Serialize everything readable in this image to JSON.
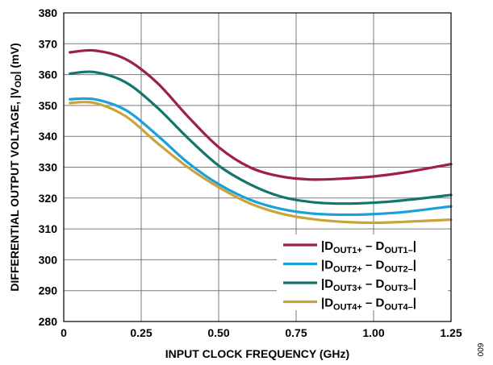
{
  "chart_data": {
    "type": "line",
    "title": "",
    "xlabel": "INPUT CLOCK FREQUENCY (GHz)",
    "ylabel_parts": {
      "before": "DIFFERENTIAL OUTPUT VOLTAGE, |V",
      "sub": "OD",
      "after": "| (mV)"
    },
    "xlim": [
      0,
      1.25
    ],
    "ylim": [
      280,
      380
    ],
    "x_ticks": [
      0,
      0.25,
      0.5,
      0.75,
      1.0,
      1.25
    ],
    "x_tick_labels": [
      "0",
      "0.25",
      "0.50",
      "0.75",
      "1.00",
      "1.25"
    ],
    "y_ticks": [
      280,
      290,
      300,
      310,
      320,
      330,
      340,
      350,
      360,
      370,
      380
    ],
    "y_tick_labels": [
      "280",
      "290",
      "300",
      "310",
      "320",
      "330",
      "340",
      "350",
      "360",
      "370",
      "380"
    ],
    "grid": true,
    "legend_position": "bottom-right",
    "x": [
      0.02,
      0.1,
      0.2,
      0.3,
      0.4,
      0.5,
      0.6,
      0.7,
      0.8,
      0.9,
      1.0,
      1.1,
      1.25
    ],
    "series": [
      {
        "legend": {
          "open": "|D",
          "sub1": "OUT1+",
          "mid": " – D",
          "sub2": "OUT1–",
          "close": "|"
        },
        "color": "#9e1f4f",
        "values": [
          367.2,
          367.8,
          365.0,
          357.5,
          346.5,
          336.5,
          330.0,
          327.0,
          326.0,
          326.3,
          327.0,
          328.3,
          331.0
        ]
      },
      {
        "legend": {
          "open": "|D",
          "sub1": "OUT2+",
          "mid": " – D",
          "sub2": "OUT2–",
          "close": "|"
        },
        "color": "#1ba0da",
        "values": [
          352.0,
          352.0,
          348.5,
          340.5,
          331.5,
          324.5,
          319.5,
          316.5,
          315.0,
          314.6,
          314.8,
          315.5,
          317.3
        ]
      },
      {
        "legend": {
          "open": "|D",
          "sub1": "OUT3+",
          "mid": " – D",
          "sub2": "OUT3–",
          "close": "|"
        },
        "color": "#13766d",
        "values": [
          360.3,
          360.8,
          357.5,
          349.5,
          339.5,
          330.5,
          324.5,
          320.5,
          318.7,
          318.2,
          318.5,
          319.3,
          321.0
        ]
      },
      {
        "legend": {
          "open": "|D",
          "sub1": "OUT4+",
          "mid": " – D",
          "sub2": "OUT4–",
          "close": "|"
        },
        "color": "#c9a33c",
        "values": [
          350.8,
          350.8,
          346.5,
          338.0,
          330.0,
          323.5,
          318.3,
          315.0,
          313.2,
          312.3,
          312.0,
          312.3,
          313.0
        ]
      }
    ]
  },
  "figure_number": "009"
}
